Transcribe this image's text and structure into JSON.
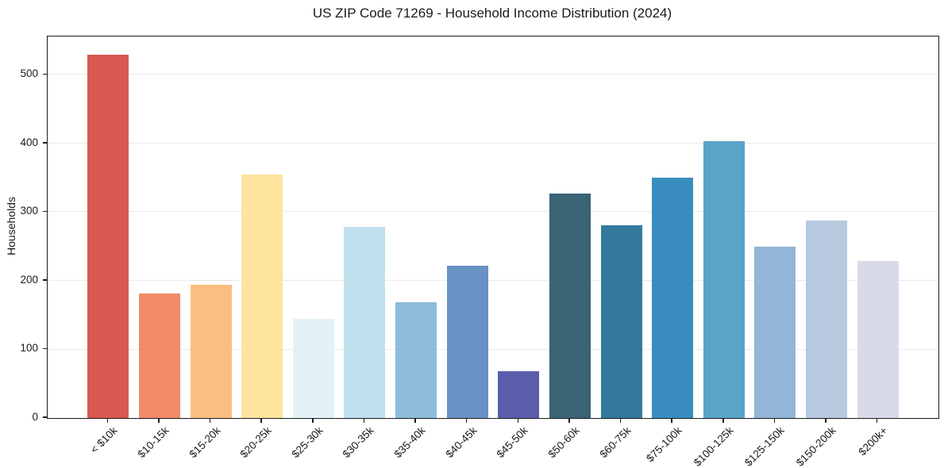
{
  "chart_data": {
    "type": "bar",
    "title": "US ZIP Code 71269 - Household Income Distribution (2024)",
    "xlabel": "",
    "ylabel": "Households",
    "categories": [
      "< $10k",
      "$10-15k",
      "$15-20k",
      "$20-25k",
      "$25-30k",
      "$30-35k",
      "$35-40k",
      "$40-45k",
      "$45-50k",
      "$50-60k",
      "$60-75k",
      "$75-100k",
      "$100-125k",
      "$125-150k",
      "$150-200k",
      "$200k+"
    ],
    "values": [
      529,
      181,
      194,
      355,
      145,
      279,
      169,
      222,
      68,
      327,
      281,
      350,
      404,
      250,
      288,
      229
    ],
    "bar_colors": [
      "#d95850",
      "#f28b69",
      "#fcbe80",
      "#fce49e",
      "#e4f1f7",
      "#c0dfec",
      "#8fbcda",
      "#6991c4",
      "#5b5dab",
      "#3a6376",
      "#35799c",
      "#398dbe",
      "#5ba4c8",
      "#92b5d8",
      "#b6c9df",
      "#d8dae9"
    ],
    "ylim": [
      0,
      556
    ],
    "yticks": [
      0,
      100,
      200,
      300,
      400,
      500
    ],
    "grid": "horizontal",
    "legend": "none",
    "background": "#ffffff",
    "spine_color": "#1c1c1c",
    "gridline_color": "#e9e9e9"
  }
}
